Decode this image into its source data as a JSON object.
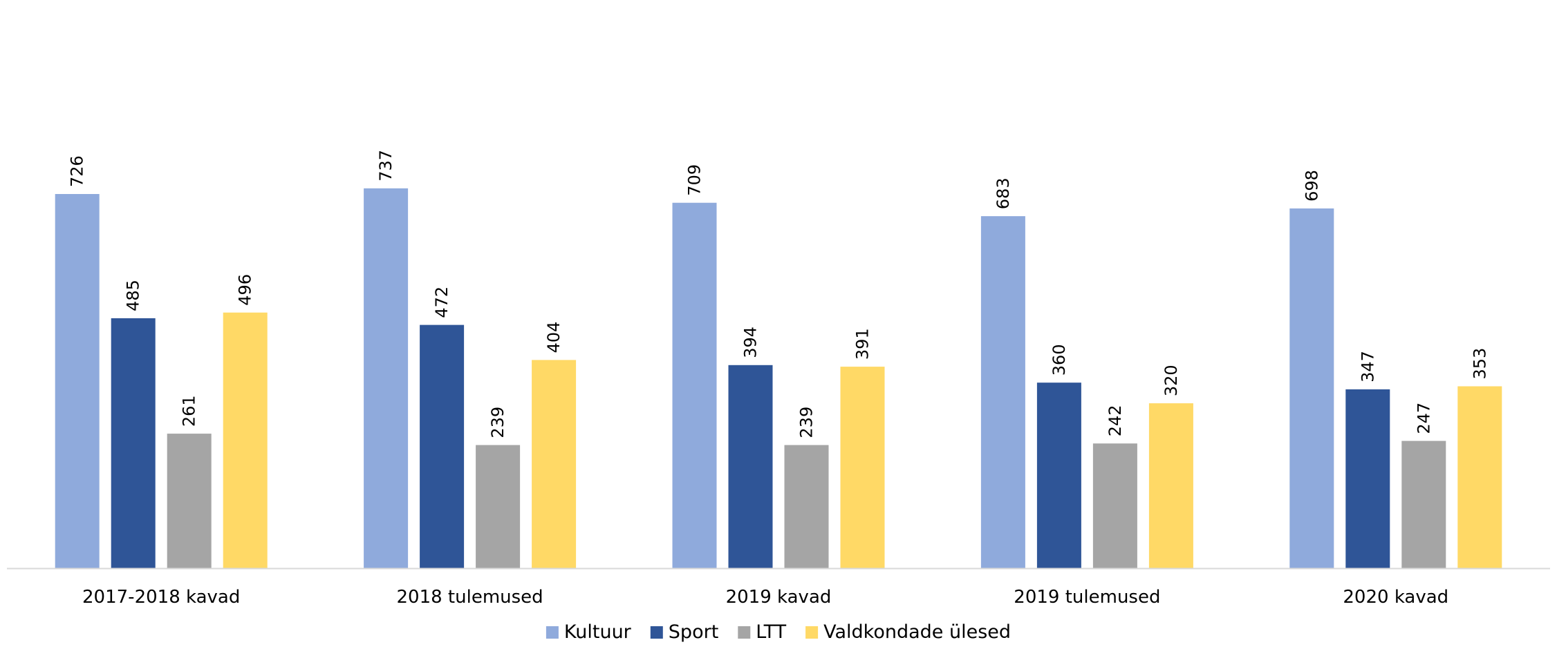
{
  "chart_data": {
    "type": "bar",
    "categories": [
      "2017-2018 kavad",
      "2018 tulemused",
      "2019 kavad",
      "2019 tulemused",
      "2020 kavad"
    ],
    "series": [
      {
        "name": "Kultuur",
        "color": "#8faadc",
        "values": [
          726,
          737,
          709,
          683,
          698
        ]
      },
      {
        "name": "Sport",
        "color": "#2f5597",
        "values": [
          485,
          472,
          394,
          360,
          347
        ]
      },
      {
        "name": "LTT",
        "color": "#a5a5a5",
        "values": [
          261,
          239,
          239,
          242,
          247
        ]
      },
      {
        "name": "Valdkondade ülesed",
        "color": "#ffd966",
        "values": [
          496,
          404,
          391,
          320,
          353
        ]
      }
    ],
    "ylim": [
      0,
      800
    ],
    "grid": false,
    "data_labels": true,
    "data_label_rotation": -90,
    "legend": "bottom-center",
    "axis_color": "#d9d9d9"
  }
}
